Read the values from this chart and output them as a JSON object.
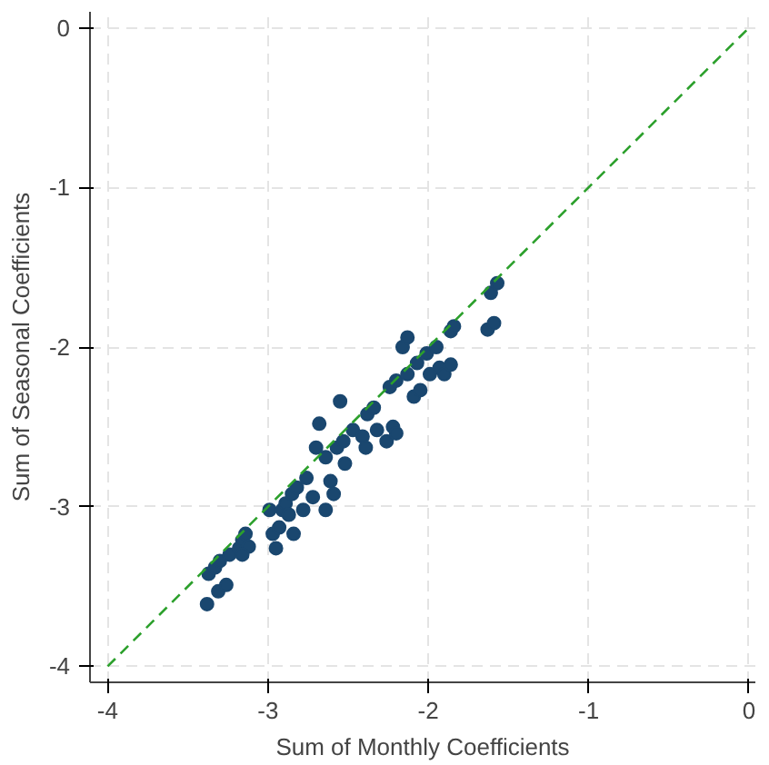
{
  "chart_data": {
    "type": "scatter",
    "xlabel": "Sum of Monthly Coefficients",
    "ylabel": "Sum of Seasonal Coefficients",
    "xlim": [
      -4.11,
      0.04
    ],
    "ylim": [
      -4.1,
      0.1
    ],
    "xticks": [
      -4,
      -3,
      -2,
      -1,
      0
    ],
    "yticks": [
      -4,
      -3,
      -2,
      -1,
      0
    ],
    "grid": true,
    "marker": "circle",
    "series": [
      {
        "color": "#1a476f",
        "x": [
          -3.38,
          -3.37,
          -3.33,
          -3.3,
          -3.31,
          -3.26,
          -3.24,
          -3.18,
          -3.16,
          -3.14,
          -3.12,
          -3.16,
          -2.99,
          -2.97,
          -2.95,
          -2.93,
          -2.91,
          -2.89,
          -2.85,
          -2.84,
          -2.87,
          -2.82,
          -2.78,
          -2.76,
          -2.72,
          -2.7,
          -2.68,
          -2.64,
          -2.64,
          -2.61,
          -2.59,
          -2.57,
          -2.55,
          -2.53,
          -2.52,
          -2.47,
          -2.41,
          -2.39,
          -2.38,
          -2.34,
          -2.32,
          -2.26,
          -2.24,
          -2.2,
          -2.22,
          -2.2,
          -2.16,
          -2.13,
          -2.13,
          -2.09,
          -2.05,
          -2.07,
          -2.01,
          -1.99,
          -1.95,
          -1.93,
          -1.9,
          -1.86,
          -1.86,
          -1.84,
          -1.63,
          -1.59,
          -1.61,
          -1.57
        ],
        "values": [
          -3.61,
          -3.42,
          -3.38,
          -3.34,
          -3.53,
          -3.49,
          -3.3,
          -3.26,
          -3.21,
          -3.17,
          -3.25,
          -3.3,
          -3.02,
          -3.17,
          -3.26,
          -3.13,
          -3.02,
          -2.98,
          -2.92,
          -3.17,
          -3.05,
          -2.88,
          -3.02,
          -2.82,
          -2.94,
          -2.63,
          -2.48,
          -3.02,
          -2.69,
          -2.84,
          -2.92,
          -2.63,
          -2.34,
          -2.59,
          -2.73,
          -2.52,
          -2.56,
          -2.63,
          -2.42,
          -2.38,
          -2.52,
          -2.59,
          -2.25,
          -2.21,
          -2.5,
          -2.54,
          -2.0,
          -1.94,
          -2.17,
          -2.31,
          -2.27,
          -2.1,
          -2.04,
          -2.17,
          -2.0,
          -2.13,
          -2.17,
          -2.11,
          -1.9,
          -1.87,
          -1.89,
          -1.85,
          -1.66,
          -1.6
        ]
      },
      {
        "type": "line",
        "color": "#2ca02c",
        "line_style": "dashed",
        "marker": "none",
        "x": [
          -4,
          0
        ],
        "values": [
          -4,
          0
        ]
      }
    ]
  }
}
